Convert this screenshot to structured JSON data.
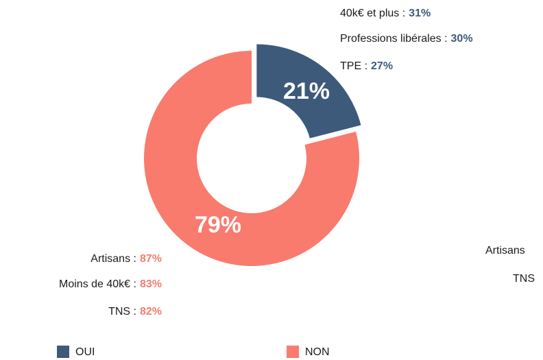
{
  "chart_data": {
    "type": "donut",
    "categories": [
      "OUI",
      "NON"
    ],
    "values": [
      21,
      79
    ],
    "value_labels": [
      "21%",
      "79%"
    ],
    "colors": [
      "#3d5a7a",
      "#f87b6e"
    ],
    "explode": [
      true,
      false
    ],
    "legend": "bottom",
    "annotations": [
      {
        "label": "40k€ et plus :",
        "value": "31%",
        "color": "#3d5a7a",
        "side": "top-right"
      },
      {
        "label": "Professions libérales :",
        "value": "30%",
        "color": "#3d5a7a",
        "side": "top-right"
      },
      {
        "label": "TPE :",
        "value": "27%",
        "color": "#3d5a7a",
        "side": "top-right"
      },
      {
        "label": "Artisans :",
        "value": "87%",
        "color": "#f87b6e",
        "side": "bottom-left"
      },
      {
        "label": "Moins de 40k€ :",
        "value": "83%",
        "color": "#f87b6e",
        "side": "bottom-left"
      },
      {
        "label": "TNS :",
        "value": "82%",
        "color": "#f87b6e",
        "side": "bottom-left"
      },
      {
        "label": "Artisans",
        "side": "right-cut"
      },
      {
        "label": "TNS",
        "side": "right-cut"
      }
    ]
  }
}
